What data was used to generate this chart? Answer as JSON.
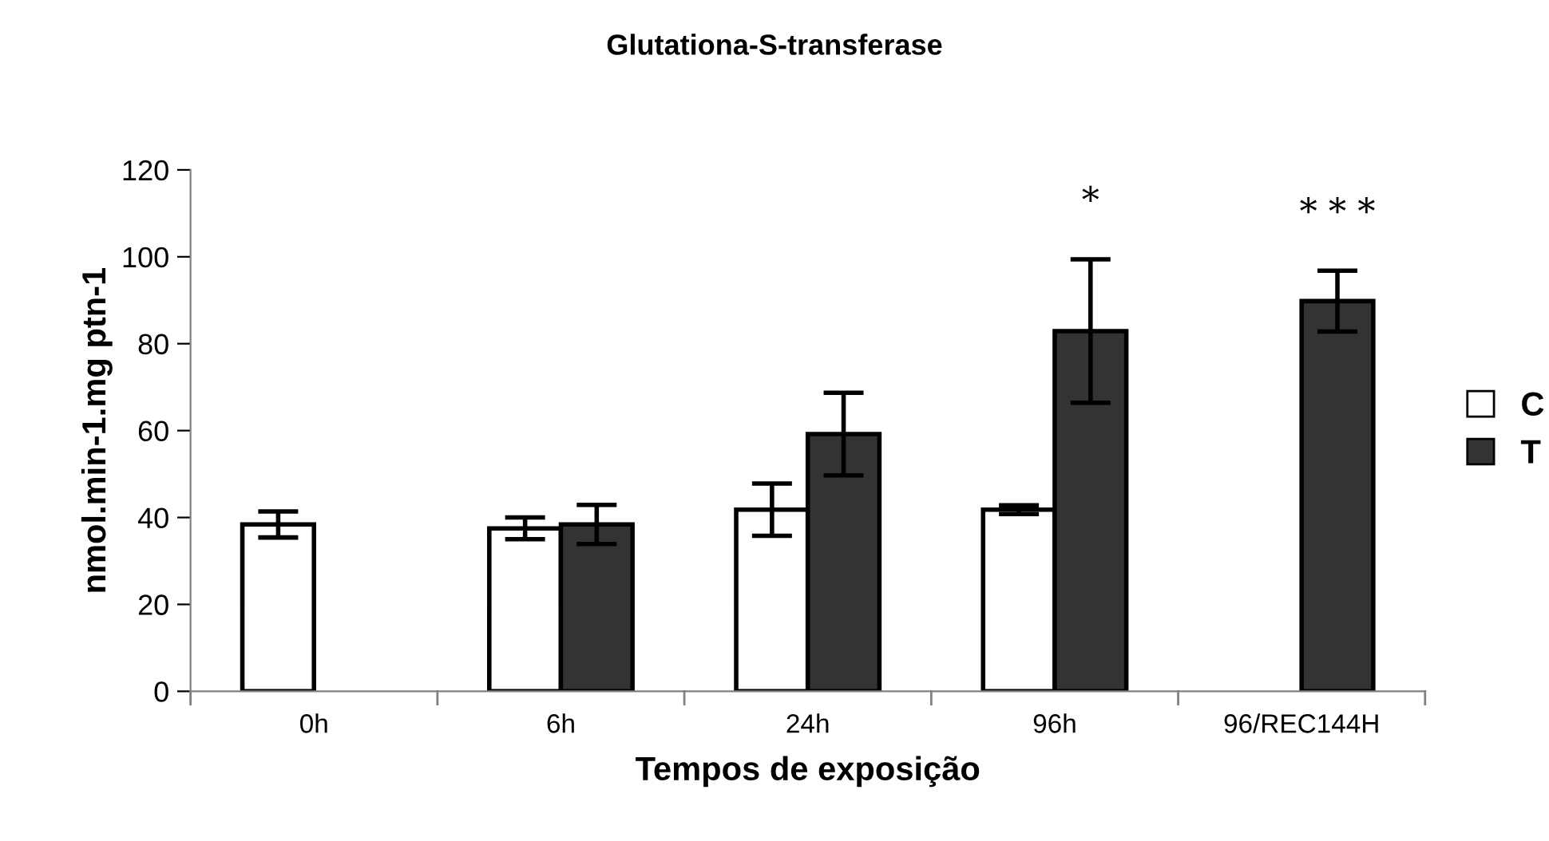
{
  "chart_data": {
    "type": "bar",
    "title": "Glutationa-S-transferase",
    "xlabel": "Tempos de exposição",
    "ylabel": "nmol.min-1.mg ptn-1",
    "categories": [
      "0h",
      "6h",
      "24h",
      "96h",
      "96/REC144H"
    ],
    "series": [
      {
        "name": "C",
        "color": "#ffffff",
        "values": [
          38.4,
          37.5,
          41.8,
          41.8,
          null
        ],
        "errors": [
          3,
          2.5,
          6,
          1,
          null
        ]
      },
      {
        "name": "T",
        "color": "#333333",
        "values": [
          null,
          38.4,
          59.2,
          82.9,
          89.8
        ],
        "errors": [
          null,
          4.5,
          9.5,
          16.5,
          7
        ]
      }
    ],
    "ylim": [
      0,
      120
    ],
    "yticks": [
      0,
      20,
      40,
      60,
      80,
      100,
      120
    ],
    "grid": false,
    "legend": "right",
    "annotations": [
      "*",
      "* * *"
    ]
  }
}
